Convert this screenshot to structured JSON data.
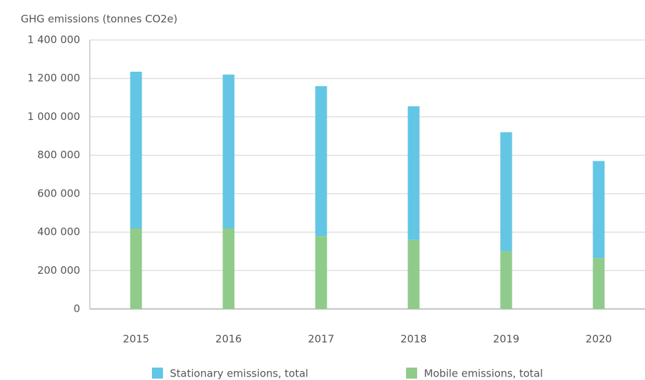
{
  "chart_data": {
    "type": "stacked_bar",
    "y_axis_label": "GHG emissions (tonnes CO2e)",
    "categories": [
      "2015",
      "2016",
      "2017",
      "2018",
      "2019",
      "2020"
    ],
    "series": [
      {
        "name": "Stationary emissions, total",
        "color": "#62c6e4",
        "values": [
          815000,
          800000,
          780000,
          695000,
          620000,
          505000
        ]
      },
      {
        "name": "Mobile emissions, total",
        "color": "#8fcb8a",
        "values": [
          420000,
          420000,
          380000,
          360000,
          300000,
          265000
        ]
      }
    ],
    "ylim": [
      0,
      1400000
    ],
    "yticks": [
      0,
      {
        "value": 200000,
        "label": "200 000"
      },
      {
        "value": 400000,
        "label": "400 000"
      },
      {
        "value": 600000,
        "label": "600 000"
      },
      {
        "value": 800000,
        "label": "800 000"
      },
      {
        "value": 1000000,
        "label": "1 000 000"
      },
      {
        "value": 1200000,
        "label": "1 200 000"
      },
      {
        "value": 1400000,
        "label": "1 400 000"
      }
    ],
    "grid": true,
    "legend": "bottom"
  }
}
